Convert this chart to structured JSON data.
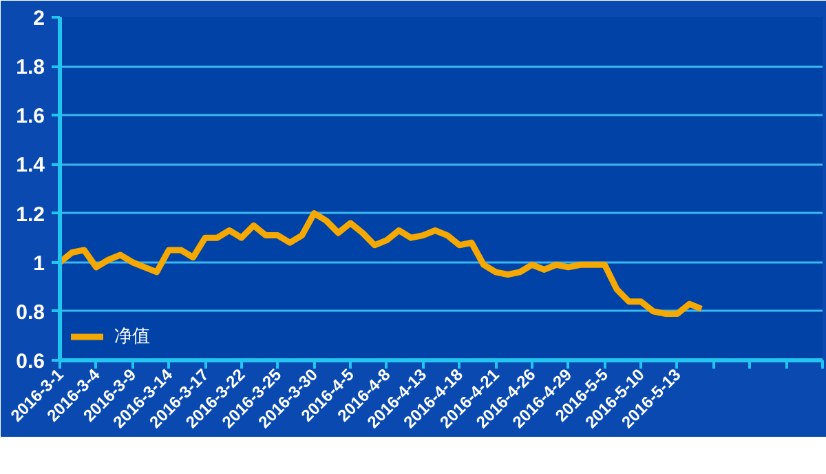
{
  "chart_data": {
    "type": "line",
    "categories": [
      "2016-3-1",
      null,
      null,
      "2016-3-4",
      null,
      null,
      "2016-3-9",
      null,
      null,
      "2016-3-14",
      null,
      null,
      "2016-3-17",
      null,
      null,
      "2016-3-22",
      null,
      null,
      "2016-3-25",
      null,
      null,
      "2016-3-30",
      null,
      null,
      "2016-4-5",
      null,
      null,
      "2016-4-8",
      null,
      null,
      "2016-4-13",
      null,
      null,
      "2016-4-18",
      null,
      null,
      "2016-4-21",
      null,
      null,
      "2016-4-26",
      null,
      null,
      "2016-4-29",
      null,
      null,
      "2016-5-5",
      null,
      null,
      "2016-5-10",
      null,
      null,
      "2016-5-13",
      null,
      null,
      null,
      null,
      null,
      null,
      null,
      null,
      null,
      null,
      null,
      null
    ],
    "series": [
      {
        "name": "净值",
        "color": "#f5a800",
        "values": [
          1.0,
          1.04,
          1.05,
          0.98,
          1.01,
          1.03,
          1.0,
          0.98,
          0.96,
          1.05,
          1.05,
          1.02,
          1.1,
          1.1,
          1.13,
          1.1,
          1.15,
          1.11,
          1.11,
          1.08,
          1.11,
          1.2,
          1.17,
          1.12,
          1.16,
          1.12,
          1.07,
          1.09,
          1.13,
          1.1,
          1.11,
          1.13,
          1.11,
          1.07,
          1.08,
          0.99,
          0.96,
          0.95,
          0.96,
          0.99,
          0.97,
          0.99,
          0.98,
          0.99,
          0.99,
          0.99,
          0.89,
          0.84,
          0.84,
          0.8,
          0.79,
          0.79,
          0.83,
          0.81,
          null,
          null,
          null,
          null,
          null,
          null,
          null,
          null,
          null,
          null
        ]
      }
    ],
    "ylim": [
      0.6,
      2
    ],
    "yticks": [
      0.6,
      0.8,
      1,
      1.2,
      1.4,
      1.6,
      1.8,
      2
    ],
    "grid": "y",
    "legend": "bottom left",
    "marker": "none",
    "line_style": "solid"
  }
}
